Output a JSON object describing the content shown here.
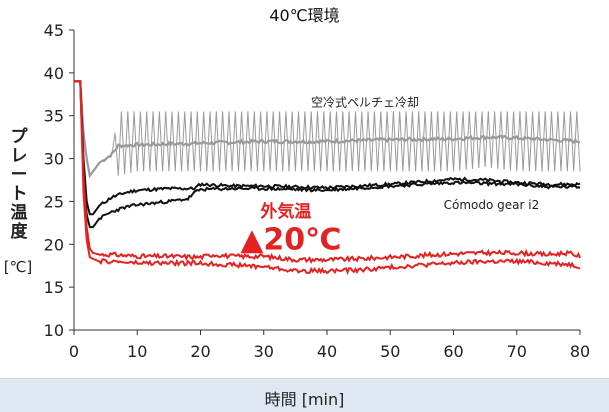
{
  "chart_data": {
    "type": "line",
    "title": "40℃環境",
    "xlabel": "時間 [min]",
    "ylabel": "プレート温度",
    "yunit": "[℃]",
    "xlim": [
      0,
      80
    ],
    "ylim": [
      10,
      45
    ],
    "xticks": [
      0,
      10,
      20,
      30,
      40,
      50,
      60,
      70,
      80
    ],
    "yticks": [
      10,
      15,
      20,
      25,
      30,
      35,
      40,
      45
    ],
    "grid": false,
    "series": [
      {
        "name": "空冷式ペルチェ冷却",
        "color": "#999999",
        "band": true,
        "x": [
          0,
          1,
          1.5,
          2,
          2.5,
          3,
          4,
          5,
          6,
          6.5,
          7,
          10,
          20,
          30,
          40,
          50,
          60,
          65,
          70,
          75,
          80
        ],
        "y_upper": [
          39,
          39,
          34,
          31.5,
          31,
          31,
          31,
          31,
          31.5,
          33,
          35.5,
          35.5,
          35.5,
          35.5,
          35.5,
          35.5,
          35.5,
          35.5,
          35.5,
          35.5,
          35.5
        ],
        "y_lower": [
          39,
          39,
          32,
          28,
          25,
          25.5,
          26.5,
          26.5,
          27,
          28,
          28,
          28.5,
          28.5,
          28.5,
          28.5,
          28.5,
          28.5,
          29,
          28.5,
          28.5,
          28.5
        ],
        "y_mean": [
          39,
          39,
          33,
          30,
          28,
          28.5,
          29.5,
          30,
          30.5,
          31,
          31.5,
          31.6,
          31.8,
          32,
          32,
          32.2,
          32.3,
          32.5,
          32.4,
          32.2,
          32
        ]
      },
      {
        "name": "Cómodo gear i2",
        "color": "#111111",
        "x": [
          0,
          1,
          1.5,
          2,
          2.5,
          3,
          4,
          6,
          8,
          10,
          15,
          18,
          19,
          20,
          25,
          30,
          40,
          50,
          55,
          60,
          65,
          70,
          75,
          80
        ],
        "y_upper": [
          39,
          39,
          30,
          25,
          23.5,
          23.5,
          24.5,
          25.5,
          26,
          26.3,
          26.5,
          26.5,
          26.5,
          27,
          26.8,
          26.8,
          26.6,
          27,
          27.3,
          27.6,
          27.5,
          27.2,
          27,
          27
        ],
        "y_lower": [
          39,
          39,
          28,
          23.5,
          22,
          22,
          23,
          23.8,
          24.3,
          24.6,
          25,
          25.3,
          26,
          26.4,
          26.5,
          26.5,
          26.3,
          26.8,
          27,
          27.2,
          27.1,
          27,
          26.7,
          26.7
        ]
      },
      {
        "name": "外気温",
        "color": "#e62121",
        "x": [
          0,
          1,
          1.5,
          2,
          2.5,
          3,
          4,
          6,
          10,
          15,
          20,
          22,
          25,
          30,
          35,
          40,
          45,
          50,
          55,
          60,
          65,
          70,
          75,
          78,
          80
        ],
        "y_upper": [
          39,
          39,
          28,
          22,
          19.5,
          19,
          18.8,
          18.8,
          18.6,
          18.6,
          18.5,
          18.8,
          18.6,
          18.6,
          18.2,
          18.2,
          18.3,
          18.5,
          18.7,
          18.9,
          19,
          19,
          18.8,
          19,
          18.6
        ],
        "y_lower": [
          39,
          39,
          26,
          20.5,
          18.5,
          18.3,
          18,
          18,
          17.8,
          17.8,
          17.8,
          17.7,
          17.6,
          17.4,
          16.9,
          16.9,
          17,
          17.3,
          17.6,
          17.8,
          18,
          18,
          17.8,
          17.7,
          17.4
        ]
      }
    ],
    "annotations": [
      {
        "text": "外気温",
        "color": "#e62121"
      },
      {
        "text": "▲20℃",
        "color": "#e62121"
      }
    ]
  }
}
